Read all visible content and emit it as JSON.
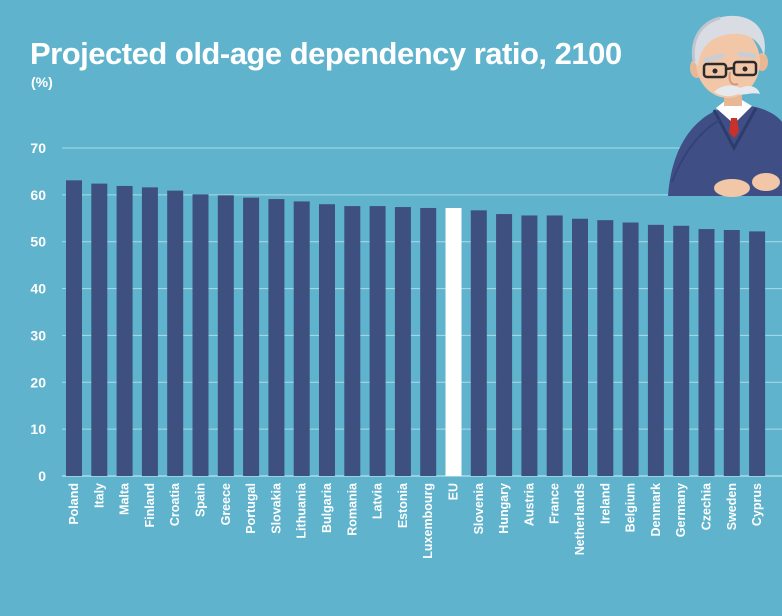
{
  "header": {
    "title": "Projected old-age dependency ratio, 2100",
    "subtitle": "(%)"
  },
  "illustration": {
    "icon": "elderly-man-icon"
  },
  "colors": {
    "background": "#5fb3cc",
    "bar": "#3d5080",
    "highlight_bar": "#ffffff",
    "gridline": "#a8dcea",
    "text": "#ffffff"
  },
  "chart_data": {
    "type": "bar",
    "title": "Projected old-age dependency ratio, 2100",
    "subtitle": "(%)",
    "xlabel": "",
    "ylabel": "",
    "ylim": [
      0,
      70
    ],
    "yticks": [
      0,
      10,
      20,
      30,
      40,
      50,
      60,
      70
    ],
    "grid": true,
    "highlight": "EU",
    "categories": [
      "Poland",
      "Italy",
      "Malta",
      "Finland",
      "Croatia",
      "Spain",
      "Greece",
      "Portugal",
      "Slovakia",
      "Lithuania",
      "Bulgaria",
      "Romania",
      "Latvia",
      "Estonia",
      "Luxembourg",
      "EU",
      "Slovenia",
      "Hungary",
      "Austria",
      "France",
      "Netherlands",
      "Ireland",
      "Belgium",
      "Denmark",
      "Germany",
      "Czechia",
      "Sweden",
      "Cyprus"
    ],
    "values": [
      63.1,
      62.4,
      61.9,
      61.6,
      60.9,
      60.1,
      59.9,
      59.4,
      59.1,
      58.6,
      58.0,
      57.6,
      57.6,
      57.4,
      57.2,
      57.2,
      56.7,
      55.9,
      55.6,
      55.6,
      54.9,
      54.6,
      54.1,
      53.6,
      53.4,
      52.7,
      52.5,
      52.2
    ]
  }
}
